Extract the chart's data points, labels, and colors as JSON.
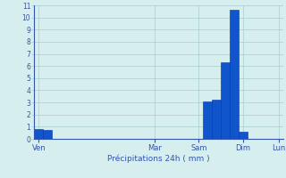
{
  "bar_color": "#1155cc",
  "bar_edge_color": "#0033aa",
  "background_color": "#d6eeee",
  "grid_color": "#aacccc",
  "tick_label_color": "#3355aa",
  "ylim": [
    0,
    11
  ],
  "yticks": [
    0,
    1,
    2,
    3,
    4,
    5,
    6,
    7,
    8,
    9,
    10,
    11
  ],
  "bar_values": [
    0.8,
    0.7,
    0,
    0,
    0,
    0,
    0,
    0,
    0,
    0,
    0,
    0,
    0,
    0,
    0,
    0,
    0,
    0,
    0,
    3.1,
    3.2,
    6.3,
    10.6,
    0.6,
    0,
    0,
    0,
    0
  ],
  "n_bars": 28,
  "day_labels": [
    "Ven",
    "Mar",
    "Sam",
    "Dim",
    "Lun"
  ],
  "day_tick_positions": [
    0,
    13,
    18,
    23,
    27
  ],
  "xlabel": "Précipitations 24h ( mm )"
}
